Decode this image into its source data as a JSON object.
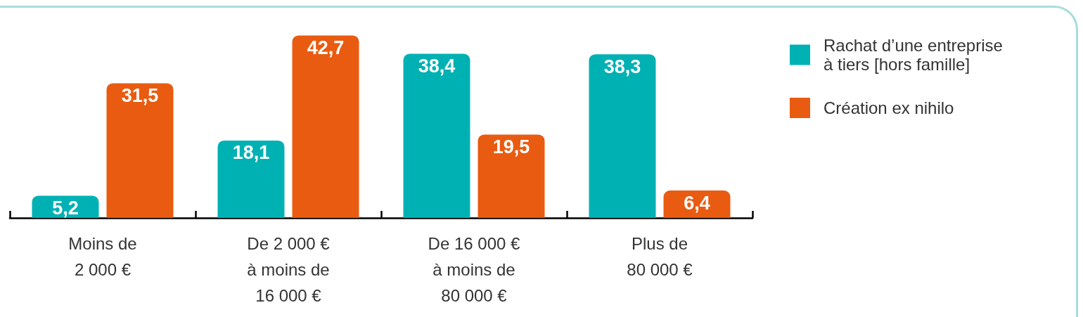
{
  "chart_data": {
    "type": "bar",
    "categories": [
      "Moins de 2 000 €",
      "De 2 000 € à moins de 16 000 €",
      "De 16 000 € à moins de 80 000 €",
      "Plus de 80 000 €"
    ],
    "series": [
      {
        "name": "Rachat d’une entreprise à tiers [hors famille]",
        "color": "#00b1b4",
        "values": [
          5.2,
          18.1,
          38.4,
          38.3
        ],
        "value_labels": [
          "5,2",
          "18,1",
          "38,4",
          "38,3"
        ]
      },
      {
        "name": "Création ex nihilo",
        "color": "#e95b10",
        "values": [
          31.5,
          42.7,
          19.5,
          6.4
        ],
        "value_labels": [
          "31,5",
          "42,7",
          "19,5",
          "6,4"
        ]
      }
    ],
    "legend": "top right"
  }
}
